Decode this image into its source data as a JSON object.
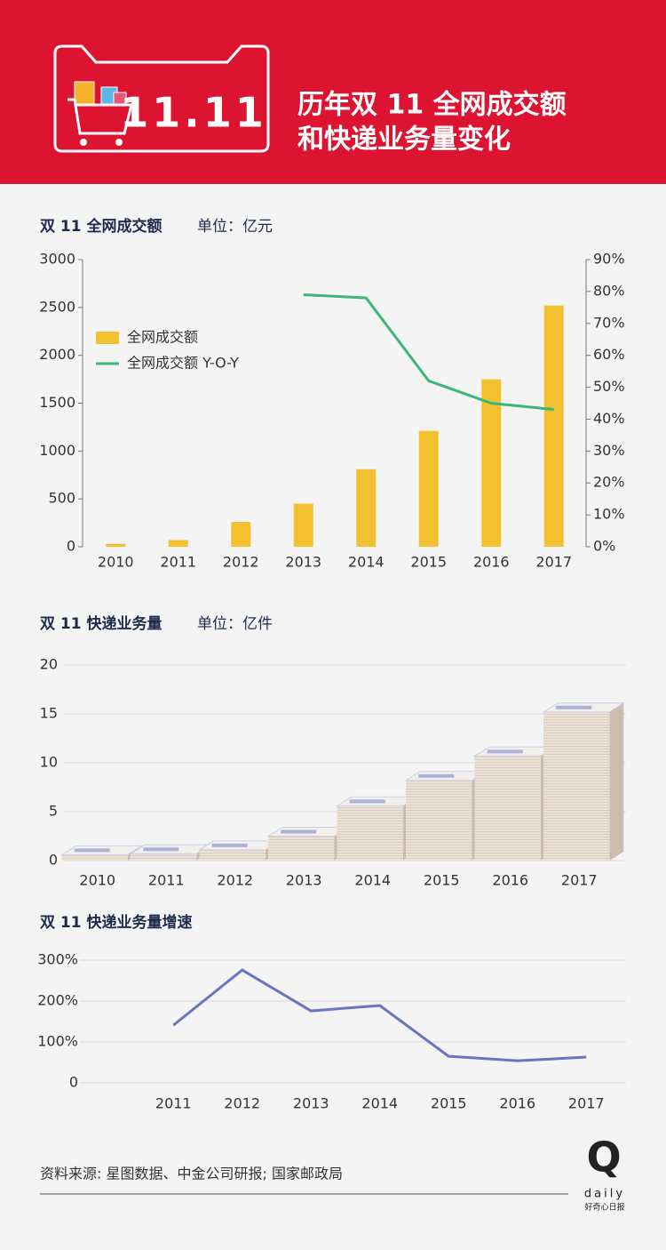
{
  "header": {
    "logo_text": "11.11",
    "title": [
      "历年双 11 全网成交额",
      "和快递业务量变化"
    ]
  },
  "chart_data": [
    {
      "type": "combo",
      "title": "双 11 全网成交额",
      "unit": "单位：亿元",
      "categories": [
        "2010",
        "2011",
        "2012",
        "2013",
        "2014",
        "2015",
        "2016",
        "2017"
      ],
      "series": [
        {
          "name": "全网成交额",
          "type": "bar",
          "color": "#f3c12f",
          "values": [
            30,
            70,
            260,
            450,
            810,
            1210,
            1750,
            2520
          ]
        },
        {
          "name": "全网成交额 Y-O-Y",
          "type": "line",
          "axis": "y2",
          "color": "#3cb57a",
          "values": [
            null,
            null,
            null,
            79,
            78,
            52,
            45,
            43
          ]
        }
      ],
      "ylim": [
        0,
        3000
      ],
      "yticks": [
        0,
        500,
        1000,
        1500,
        2000,
        2500,
        3000
      ],
      "y2lim": [
        0,
        90
      ],
      "y2ticks": [
        {
          "value": 0,
          "label": "0%"
        },
        {
          "value": 10,
          "label": "10%"
        },
        {
          "value": 20,
          "label": "20%"
        },
        {
          "value": 30,
          "label": "30%"
        },
        {
          "value": 40,
          "label": "40%"
        },
        {
          "value": 50,
          "label": "50%"
        },
        {
          "value": 60,
          "label": "60%"
        },
        {
          "value": 70,
          "label": "70%"
        },
        {
          "value": 80,
          "label": "80%"
        },
        {
          "value": 90,
          "label": "90%"
        }
      ],
      "legend": "upper left"
    },
    {
      "type": "bar",
      "title": "双 11 快递业务量",
      "unit": "单位：亿件",
      "categories": [
        "2010",
        "2011",
        "2012",
        "2013",
        "2014",
        "2015",
        "2016",
        "2017"
      ],
      "values": [
        0.6,
        0.7,
        1.1,
        2.5,
        5.6,
        8.2,
        10.7,
        15.2
      ],
      "color": "#e8dcd1",
      "ylim": [
        0,
        20
      ],
      "yticks": [
        0,
        5,
        10,
        15,
        20
      ],
      "grid": true
    },
    {
      "type": "line",
      "title": "双 11 快递业务量增速",
      "categories": [
        null,
        "2011",
        "2012",
        "2013",
        "2014",
        "2015",
        "2016",
        "2017"
      ],
      "values": [
        null,
        141,
        276,
        176,
        189,
        65,
        54,
        63
      ],
      "color": "#6a74c0",
      "ylim": [
        0,
        300
      ],
      "yticks": [
        0,
        {
          "value": 100,
          "label": "100%"
        },
        {
          "value": 200,
          "label": "200%"
        },
        {
          "value": 300,
          "label": "300%"
        }
      ],
      "grid": true
    }
  ],
  "footer": {
    "source": "资料来源: 星图数据、中金公司研报; 国家邮政局",
    "brand": "Q",
    "brand_sub": "daily",
    "brand_cn": "好奇心日报"
  }
}
